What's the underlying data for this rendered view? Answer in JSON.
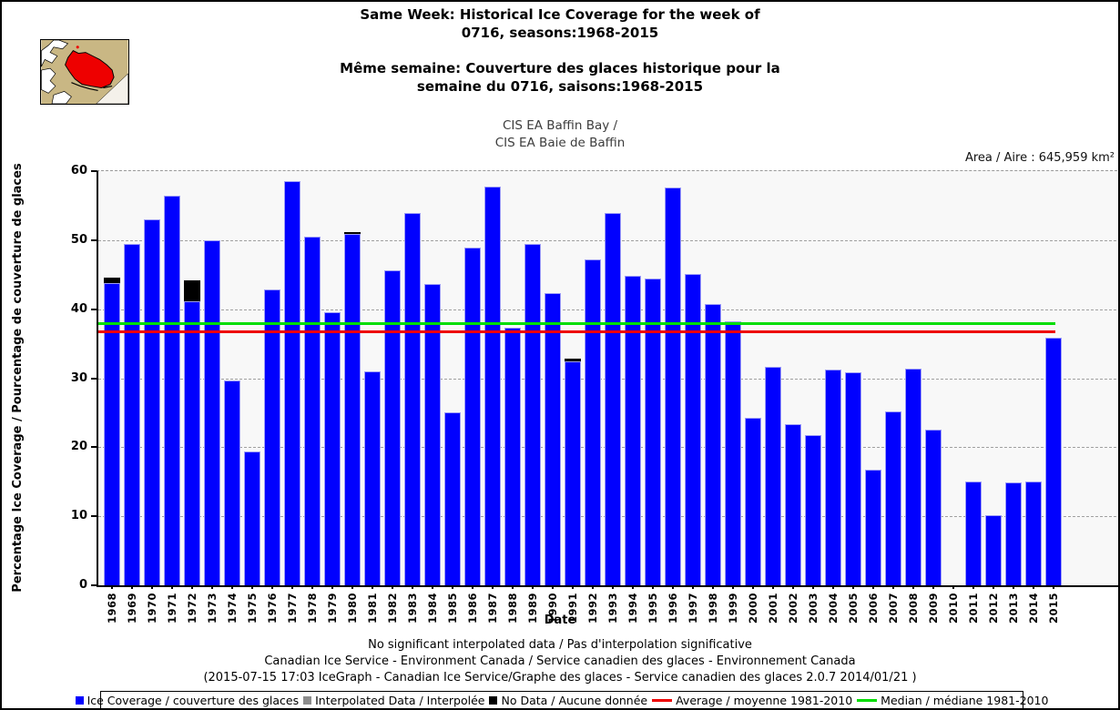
{
  "header": {
    "title_en_line1": "Same Week: Historical Ice Coverage for the week of",
    "title_en_line2": "0716, seasons:1968-2015",
    "title_fr_line1": "Même semaine: Couverture des glaces historique pour la",
    "title_fr_line2": "semaine du 0716, saisons:1968-2015",
    "region_line1": "CIS EA Baffin Bay /",
    "region_line2": "CIS EA Baie de Baffin",
    "area_label": "Area / Aire : 645,959 km²"
  },
  "footer": {
    "line1": "No significant interpolated data / Pas d'interpolation significative",
    "line2": "Canadian Ice Service - Environment Canada / Service canadien des glaces - Environnement Canada",
    "line3": "(2015-07-15 17:03 IceGraph - Canadian Ice Service/Graphe des glaces - Service canadien des glaces 2.0.7 2014/01/21 )"
  },
  "legend": {
    "ice_label": "Ice Coverage / couverture des glaces",
    "interpolated_label": "Interpolated Data / Interpolée",
    "no_data_label": "No Data / Aucune donnée",
    "average_label": "Average / moyenne 1981-2010",
    "median_label": "Median / médiane 1981-2010"
  },
  "colors": {
    "bar_blue": "#0101fe",
    "interpolated_gray": "#8c8c8c",
    "no_data_black": "#000000",
    "average_red": "#ee0000",
    "median_green": "#00dd00",
    "plot_background": "#f8f8f8",
    "map_land_tan": "#c9b784",
    "map_region_red": "#ee0000"
  },
  "chart_data": {
    "type": "bar",
    "title": "Same Week: Historical Ice Coverage for the week of 0716, seasons:1968-2015",
    "subtitle": "CIS EA Baffin Bay / CIS EA Baie de Baffin",
    "xlabel": "Date",
    "ylabel": "Percentage Ice Coverage / Pourcentage de couverture de glaces",
    "ylim": [
      0,
      60
    ],
    "yticks": [
      0,
      10,
      20,
      30,
      40,
      50,
      60
    ],
    "grid": "horizontal-dashed",
    "legend_position": "bottom",
    "categories": [
      "1968",
      "1969",
      "1970",
      "1971",
      "1972",
      "1973",
      "1974",
      "1975",
      "1976",
      "1977",
      "1978",
      "1979",
      "1980",
      "1981",
      "1982",
      "1983",
      "1984",
      "1985",
      "1986",
      "1987",
      "1988",
      "1989",
      "1990",
      "1991",
      "1992",
      "1993",
      "1994",
      "1995",
      "1996",
      "1997",
      "1998",
      "1999",
      "2000",
      "2001",
      "2002",
      "2003",
      "2004",
      "2005",
      "2006",
      "2007",
      "2008",
      "2009",
      "2010",
      "2011",
      "2012",
      "2013",
      "2014",
      "2015"
    ],
    "series": [
      {
        "name": "Ice Coverage / couverture des glaces",
        "values": [
          43.8,
          49.4,
          53.0,
          56.5,
          41.2,
          50.0,
          29.7,
          19.4,
          42.9,
          58.5,
          50.5,
          39.5,
          50.9,
          31.0,
          45.6,
          53.9,
          43.6,
          25.1,
          48.9,
          57.7,
          37.3,
          49.5,
          42.3,
          32.4,
          47.2,
          53.9,
          44.8,
          44.4,
          57.6,
          45.1,
          40.7,
          38.2,
          24.3,
          31.7,
          23.4,
          21.8,
          31.2,
          30.9,
          16.7,
          25.2,
          31.4,
          22.6,
          0,
          15.0,
          10.2,
          14.9,
          15.0,
          35.9
        ]
      },
      {
        "name": "No Data / Aucune donnée",
        "values": [
          0.8,
          0,
          0,
          0,
          3.0,
          0,
          0,
          0,
          0,
          0,
          0,
          0,
          0.3,
          0,
          0,
          0,
          0,
          0,
          0,
          0,
          0,
          0,
          0,
          0.4,
          0,
          0,
          0,
          0,
          0,
          0,
          0,
          0,
          0,
          0,
          0,
          0,
          0,
          0,
          0,
          0,
          0,
          0,
          0,
          0,
          0,
          0,
          0,
          0
        ]
      }
    ],
    "reference_lines": [
      {
        "name": "Average / moyenne 1981-2010",
        "value": 36.7,
        "color": "#ee0000"
      },
      {
        "name": "Median / médiane 1981-2010",
        "value": 37.9,
        "color": "#00dd00"
      }
    ]
  }
}
